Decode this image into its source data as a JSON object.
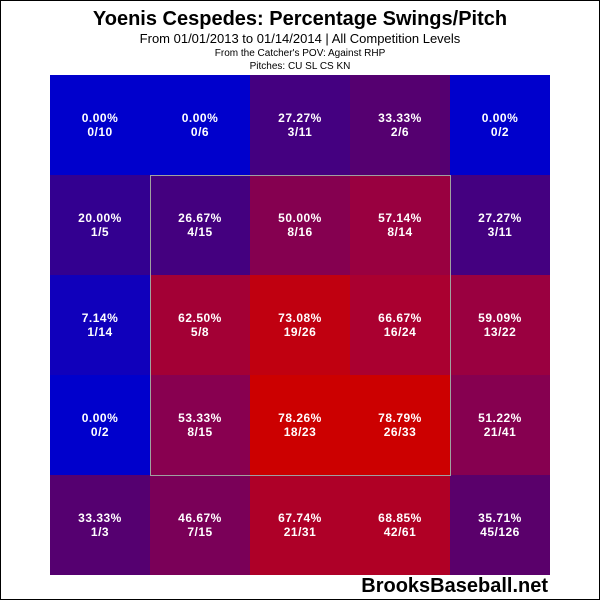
{
  "header": {
    "title": "Yoenis Cespedes: Percentage Swings/Pitch",
    "subtitle": "From 01/01/2013 to 01/14/2014 | All Competition Levels",
    "pov": "From the Catcher's POV:   Against RHP",
    "pitches": "Pitches:  CU  SL  CS  KN"
  },
  "brand": "BrooksBaseball.net",
  "colors": {
    "low": "#0000cc",
    "high": "#cc0000",
    "zone_border": "#a0a0a0"
  },
  "chart_data": {
    "type": "heatmap",
    "title": "Yoenis Cespedes: Percentage Swings/Pitch",
    "subtitle": "From 01/01/2013 to 01/14/2014 | All Competition Levels; From the Catcher's POV: Against RHP; Pitches: CU SL CS KN",
    "rows": 5,
    "cols": 5,
    "strike_zone": {
      "rows": [
        1,
        3
      ],
      "cols": [
        1,
        3
      ]
    },
    "cells": [
      [
        {
          "pct": "0.00%",
          "frac": "0/10",
          "color": "#0000cc"
        },
        {
          "pct": "0.00%",
          "frac": "0/6",
          "color": "#0000cc"
        },
        {
          "pct": "27.27%",
          "frac": "3/11",
          "color": "#440080"
        },
        {
          "pct": "33.33%",
          "frac": "2/6",
          "color": "#550070"
        },
        {
          "pct": "0.00%",
          "frac": "0/2",
          "color": "#0000cc"
        }
      ],
      [
        {
          "pct": "20.00%",
          "frac": "1/5",
          "color": "#330090"
        },
        {
          "pct": "26.67%",
          "frac": "4/15",
          "color": "#44007f"
        },
        {
          "pct": "50.00%",
          "frac": "8/16",
          "color": "#850050"
        },
        {
          "pct": "57.14%",
          "frac": "8/14",
          "color": "#990040"
        },
        {
          "pct": "27.27%",
          "frac": "3/11",
          "color": "#440080"
        }
      ],
      [
        {
          "pct": "7.14%",
          "frac": "1/14",
          "color": "#1000bb"
        },
        {
          "pct": "62.50%",
          "frac": "5/8",
          "color": "#a30035"
        },
        {
          "pct": "73.08%",
          "frac": "19/26",
          "color": "#c00010"
        },
        {
          "pct": "66.67%",
          "frac": "16/24",
          "color": "#aa0030"
        },
        {
          "pct": "59.09%",
          "frac": "13/22",
          "color": "#9a0040"
        }
      ],
      [
        {
          "pct": "0.00%",
          "frac": "0/2",
          "color": "#0000cc"
        },
        {
          "pct": "53.33%",
          "frac": "8/15",
          "color": "#880050"
        },
        {
          "pct": "78.26%",
          "frac": "18/23",
          "color": "#cc0000"
        },
        {
          "pct": "78.79%",
          "frac": "26/33",
          "color": "#cc0000"
        },
        {
          "pct": "51.22%",
          "frac": "21/41",
          "color": "#860050"
        }
      ],
      [
        {
          "pct": "33.33%",
          "frac": "1/3",
          "color": "#550070"
        },
        {
          "pct": "46.67%",
          "frac": "7/15",
          "color": "#7a0058"
        },
        {
          "pct": "67.74%",
          "frac": "21/31",
          "color": "#ae0028"
        },
        {
          "pct": "68.85%",
          "frac": "42/61",
          "color": "#b00025"
        },
        {
          "pct": "35.71%",
          "frac": "45/126",
          "color": "#5a006b"
        }
      ]
    ]
  }
}
